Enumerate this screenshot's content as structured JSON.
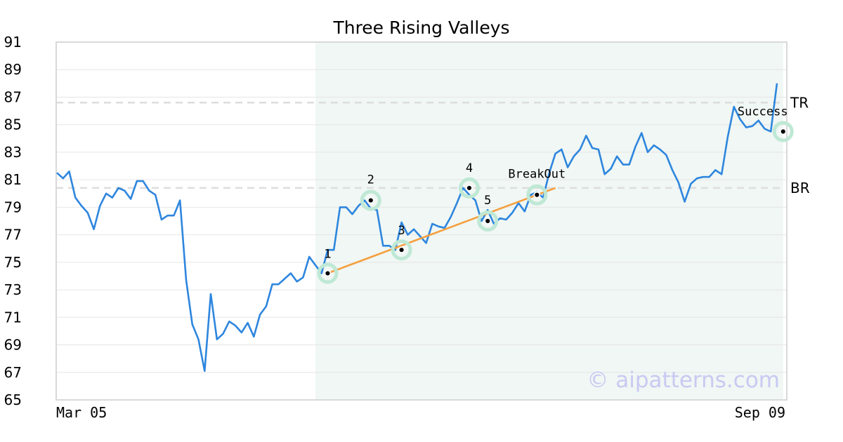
{
  "chart_data": {
    "type": "line",
    "title": "Three Rising Valleys",
    "xlabel": "",
    "ylabel": "",
    "ylim": [
      65,
      91
    ],
    "y_ticks": [
      "91",
      "89",
      "87",
      "85",
      "83",
      "81",
      "79",
      "77",
      "75",
      "73",
      "71",
      "69",
      "67",
      "65"
    ],
    "x_ticks": [
      "Mar 05",
      "Sep 09"
    ],
    "grid": true,
    "series": [
      {
        "color": "#2e86de",
        "values": [
          81.5,
          81.1,
          81.6,
          79.7,
          79.1,
          78.6,
          77.4,
          79.1,
          80.0,
          79.7,
          80.4,
          80.2,
          79.6,
          80.9,
          80.9,
          80.2,
          79.9,
          78.1,
          78.4,
          78.4,
          79.5,
          73.7,
          70.5,
          69.4,
          67.1,
          72.7,
          69.4,
          69.8,
          70.7,
          70.4,
          69.9,
          70.6,
          69.6,
          71.2,
          71.8,
          73.4,
          73.4,
          73.8,
          74.2,
          73.6,
          73.9,
          75.4,
          74.8,
          74.2,
          75.9,
          75.9,
          79.0,
          79.0,
          78.5,
          79.1,
          79.5,
          78.9,
          78.8,
          76.2,
          76.2,
          75.9,
          77.9,
          77.0,
          77.4,
          76.9,
          76.4,
          77.8,
          77.6,
          77.5,
          78.3,
          79.3,
          80.4,
          79.9,
          79.5,
          78.0,
          78.8,
          77.8,
          78.2,
          78.1,
          78.6,
          79.3,
          78.7,
          79.9,
          80.1,
          79.7,
          81.5,
          82.9,
          83.2,
          81.9,
          82.7,
          83.2,
          84.2,
          83.3,
          83.2,
          81.4,
          81.8,
          82.7,
          82.1,
          82.1,
          83.4,
          84.4,
          83.0,
          83.5,
          83.2,
          82.8,
          81.7,
          80.8,
          79.4,
          80.7,
          81.1,
          81.2,
          81.2,
          81.7,
          81.4,
          84.1,
          86.3,
          85.4,
          84.8,
          84.9,
          85.3,
          84.7,
          84.5,
          88.0
        ]
      },
      {
        "color": "#f5a040",
        "points": [
          [
            44,
            74.2
          ],
          [
            81,
            80.4
          ]
        ]
      }
    ],
    "shaded_region": {
      "x_start": 42,
      "x_end": 118,
      "color": "#f0f7f4"
    },
    "reference_lines": [
      {
        "label": "TR",
        "y": 86.6
      },
      {
        "label": "BR",
        "y": 80.4
      }
    ],
    "annotations": [
      {
        "label": "1",
        "x": 44,
        "y": 74.2
      },
      {
        "label": "2",
        "x": 51,
        "y": 79.5
      },
      {
        "label": "3",
        "x": 56,
        "y": 75.9
      },
      {
        "label": "4",
        "x": 67,
        "y": 80.4
      },
      {
        "label": "5",
        "x": 70,
        "y": 78.0
      },
      {
        "label": "BreakOut",
        "x": 78,
        "y": 79.9
      },
      {
        "label": "Success",
        "x": 118,
        "y": 84.5
      }
    ],
    "watermark": "© aipatterns.com",
    "colors": {
      "line": "#2e86de",
      "trend": "#f5a040",
      "marker_halo": "#bfe8d5",
      "shade": "#f0f7f4",
      "grid": "#e6e6e6",
      "ref_line": "#dddddd",
      "frame": "#d9d9d9"
    }
  }
}
